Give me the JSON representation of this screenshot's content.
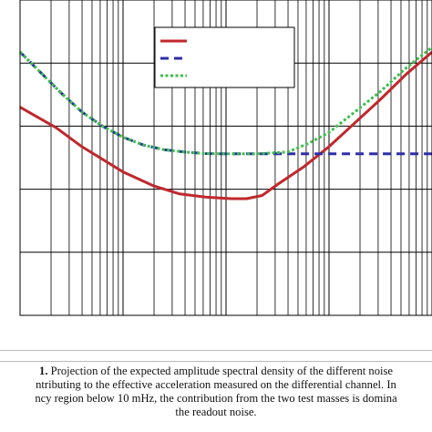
{
  "chart_data": {
    "type": "line",
    "title": "",
    "xlabel": "",
    "ylabel": "",
    "x_scale": "log",
    "y_scale": "log",
    "x_decades": 4,
    "y_major_lines": 5,
    "grid": true,
    "legend_position": "top-right",
    "series": [
      {
        "color": "#c0282d",
        "line_style": "solid",
        "points": [
          [
            0.0,
            0.34
          ],
          [
            0.35,
            0.405
          ],
          [
            0.6,
            0.465
          ],
          [
            1.0,
            0.545
          ],
          [
            1.3,
            0.59
          ],
          [
            1.55,
            0.615
          ],
          [
            1.8,
            0.625
          ],
          [
            2.05,
            0.63
          ],
          [
            2.2,
            0.63
          ],
          [
            2.35,
            0.62
          ],
          [
            2.5,
            0.585
          ],
          [
            2.75,
            0.53
          ],
          [
            3.0,
            0.465
          ],
          [
            3.25,
            0.39
          ],
          [
            3.5,
            0.315
          ],
          [
            3.75,
            0.235
          ],
          [
            4.0,
            0.165
          ]
        ]
      },
      {
        "color": "#2e2ea8",
        "line_style": "dashed",
        "points": [
          [
            0.0,
            0.165
          ],
          [
            0.2,
            0.23
          ],
          [
            0.4,
            0.295
          ],
          [
            0.6,
            0.355
          ],
          [
            0.8,
            0.4
          ],
          [
            1.0,
            0.435
          ],
          [
            1.2,
            0.46
          ],
          [
            1.4,
            0.475
          ],
          [
            1.6,
            0.482
          ],
          [
            1.8,
            0.487
          ],
          [
            2.0,
            0.488
          ],
          [
            2.3,
            0.488
          ],
          [
            2.6,
            0.488
          ],
          [
            2.65,
            0.488
          ],
          [
            3.0,
            0.488
          ],
          [
            3.5,
            0.488
          ],
          [
            4.0,
            0.488
          ]
        ]
      },
      {
        "color": "#3cbf4a",
        "line_style": "dotted",
        "points": [
          [
            0.0,
            0.165
          ],
          [
            0.2,
            0.23
          ],
          [
            0.4,
            0.295
          ],
          [
            0.6,
            0.355
          ],
          [
            0.8,
            0.4
          ],
          [
            1.0,
            0.435
          ],
          [
            1.2,
            0.46
          ],
          [
            1.4,
            0.475
          ],
          [
            1.6,
            0.482
          ],
          [
            1.8,
            0.487
          ],
          [
            2.0,
            0.488
          ],
          [
            2.3,
            0.488
          ],
          [
            2.6,
            0.482
          ],
          [
            2.8,
            0.455
          ],
          [
            3.0,
            0.42
          ],
          [
            3.25,
            0.355
          ],
          [
            3.5,
            0.29
          ],
          [
            3.75,
            0.215
          ],
          [
            4.0,
            0.15
          ]
        ]
      }
    ]
  },
  "caption": {
    "label": "1.",
    "lines": [
      " Projection of the expected amplitude spectral density of the different noise",
      "ntributing to the effective acceleration measured on the differential channel. In",
      "ncy region below 10 mHz, the contribution from the two test masses is domina",
      "the readout noise."
    ]
  }
}
